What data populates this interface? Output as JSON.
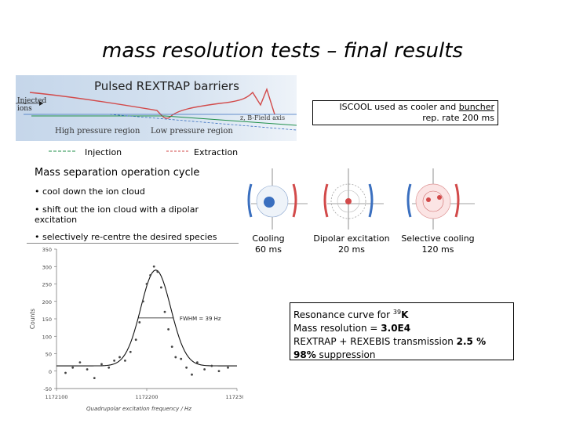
{
  "title": "mass resolution tests – final results",
  "trap": {
    "heading": "Pulsed REXTRAP barriers",
    "injected": [
      "Injected",
      "ions"
    ],
    "high_pressure": "High pressure region",
    "low_pressure": "Low pressure region",
    "z_axis": "z, B-Field axis"
  },
  "isc": {
    "prefix": "ISCOOL used as cooler and ",
    "underlined": "buncher",
    "line2": "rep. rate 200 ms"
  },
  "legend": {
    "injection": "Injection",
    "extraction": "Extraction"
  },
  "cycle": {
    "title": "Mass separation operation cycle",
    "bullets": [
      "• cool down the ion cloud",
      "• shift out the ion cloud with a dipolar excitation",
      "• selectively re-centre the desired species"
    ]
  },
  "orbits": [
    {
      "label": "Cooling",
      "time": "60 ms"
    },
    {
      "label": "Dipolar excitation",
      "time": "20 ms"
    },
    {
      "label": "Selective cooling",
      "time": "120 ms"
    }
  ],
  "result": {
    "line1": "Resonance curve for",
    "iso_mass": "39",
    "iso_el": "K",
    "line2_prefix": "Mass resolution = ",
    "line2_value": "3.0E4",
    "line3_prefix": "REXTRAP + REXEBIS transmission ",
    "line3_value": "2.5 %",
    "line4_value": "98%",
    "line4_suffix": " suppression"
  },
  "chart_data": {
    "type": "scatter",
    "xlabel": "Quadrupolar excitation frequency / Hz",
    "ylabel": "Counts",
    "yticks": [
      "350",
      "300",
      "250",
      "200",
      "150",
      "100",
      "50",
      "0",
      "-50"
    ],
    "xticks": [
      "1172100",
      "1172200",
      "1172300"
    ],
    "xlim": [
      1172100,
      1172300
    ],
    "ylim": [
      -50,
      350
    ],
    "annotation": "FWHM = 39 Hz",
    "fit": {
      "center": 1172210,
      "fwhm": 39,
      "amplitude": 275,
      "offset": 15
    },
    "x": [
      1172110,
      1172118,
      1172126,
      1172134,
      1172142,
      1172150,
      1172158,
      1172164,
      1172170,
      1172176,
      1172182,
      1172188,
      1172192,
      1172196,
      1172200,
      1172204,
      1172208,
      1172212,
      1172216,
      1172220,
      1172224,
      1172228,
      1172232,
      1172238,
      1172244,
      1172250,
      1172256,
      1172264,
      1172272,
      1172280,
      1172290
    ],
    "y": [
      -5,
      10,
      25,
      5,
      -20,
      20,
      10,
      30,
      40,
      30,
      55,
      90,
      140,
      200,
      250,
      275,
      300,
      285,
      240,
      170,
      120,
      70,
      40,
      35,
      10,
      -10,
      25,
      5,
      15,
      0,
      10
    ]
  }
}
